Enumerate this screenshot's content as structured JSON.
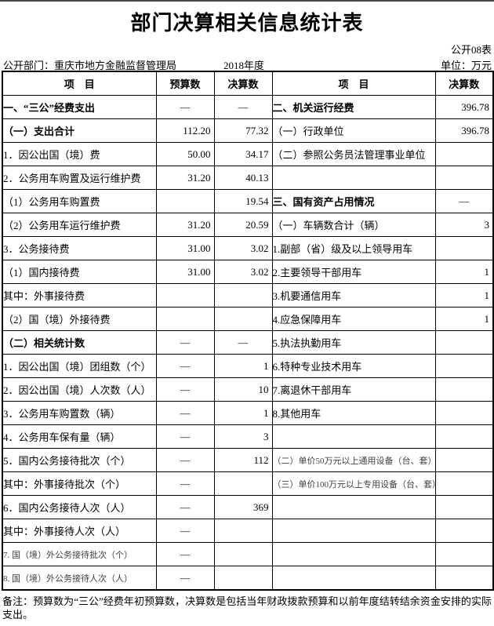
{
  "page": {
    "title": "部门决算相关信息统计表",
    "table_code": "公开08表",
    "dept": "公开部门：重庆市地方金融监督管理局",
    "year": "2018年度",
    "unit": "单位：万元",
    "note": "备注：预算数为“三公”经费年初预算数，决算数是包括当年财政拨款预算和以前年度结转结余资金安排的实际支出。"
  },
  "table": {
    "headers": {
      "item_left": "项　目",
      "budget": "预算数",
      "final_left": "决算数",
      "item_right": "项　目",
      "final_right": "决算数"
    },
    "rows": [
      {
        "left": {
          "text": "一、“三公”经费支出",
          "indent": 0,
          "bold": true,
          "small": false
        },
        "budget": "—",
        "left_final": "—",
        "right": {
          "text": "二、机关运行经费",
          "indent": 0,
          "bold": true,
          "small": false
        },
        "right_final": "396.78"
      },
      {
        "left": {
          "text": "（一）支出合计",
          "indent": 0,
          "bold": true,
          "small": false
        },
        "budget": "112.20",
        "left_final": "77.32",
        "right": {
          "text": "（一）行政单位",
          "indent": 0,
          "bold": false,
          "small": false
        },
        "right_final": "396.78"
      },
      {
        "left": {
          "text": "1．因公出国（境）费",
          "indent": 1,
          "bold": false,
          "small": false
        },
        "budget": "50.00",
        "left_final": "34.17",
        "right": {
          "text": "（二）参照公务员法管理事业单位",
          "indent": 0,
          "bold": false,
          "small": false
        },
        "right_final": ""
      },
      {
        "left": {
          "text": "2．公务用车购置及运行维护费",
          "indent": 1,
          "bold": false,
          "small": false
        },
        "budget": "31.20",
        "left_final": "40.13",
        "right": {
          "text": "",
          "indent": 0,
          "bold": false,
          "small": false
        },
        "right_final": ""
      },
      {
        "left": {
          "text": "（1）公务用车购置费",
          "indent": 2,
          "bold": false,
          "small": false
        },
        "budget": "",
        "left_final": "19.54",
        "right": {
          "text": "三、国有资产占用情况",
          "indent": 0,
          "bold": true,
          "small": false
        },
        "right_final": "—"
      },
      {
        "left": {
          "text": "（2）公务用车运行维护费",
          "indent": 2,
          "bold": false,
          "small": false
        },
        "budget": "31.20",
        "left_final": "20.59",
        "right": {
          "text": "（一）车辆数合计（辆）",
          "indent": 0,
          "bold": false,
          "small": false
        },
        "right_final": "3"
      },
      {
        "left": {
          "text": "3．公务接待费",
          "indent": 1,
          "bold": false,
          "small": false
        },
        "budget": "31.00",
        "left_final": "3.02",
        "right": {
          "text": "1.副部（省）级及以上领导用车",
          "indent": 1,
          "bold": false,
          "small": false
        },
        "right_final": ""
      },
      {
        "left": {
          "text": "（1）国内接待费",
          "indent": 2,
          "bold": false,
          "small": false
        },
        "budget": "31.00",
        "left_final": "3.02",
        "right": {
          "text": "2.主要领导干部用车",
          "indent": 1,
          "bold": false,
          "small": false
        },
        "right_final": "1"
      },
      {
        "left": {
          "text": "其中：外事接待费",
          "indent": 4,
          "bold": false,
          "small": false
        },
        "budget": "",
        "left_final": "",
        "right": {
          "text": "3.机要通信用车",
          "indent": 1,
          "bold": false,
          "small": false
        },
        "right_final": "1"
      },
      {
        "left": {
          "text": "（2）国（境）外接待费",
          "indent": 2,
          "bold": false,
          "small": false
        },
        "budget": "",
        "left_final": "",
        "right": {
          "text": "4.应急保障用车",
          "indent": 1,
          "bold": false,
          "small": false
        },
        "right_final": "1"
      },
      {
        "left": {
          "text": "（二）相关统计数",
          "indent": 0,
          "bold": true,
          "small": false
        },
        "budget": "—",
        "left_final": "—",
        "right": {
          "text": "5.执法执勤用车",
          "indent": 1,
          "bold": false,
          "small": false
        },
        "right_final": ""
      },
      {
        "left": {
          "text": "1．因公出国（境）团组数（个）",
          "indent": 1,
          "bold": false,
          "small": false
        },
        "budget": "—",
        "left_final": "1",
        "right": {
          "text": "6.特种专业技术用车",
          "indent": 1,
          "bold": false,
          "small": false
        },
        "right_final": ""
      },
      {
        "left": {
          "text": "2．因公出国（境）人次数（人）",
          "indent": 1,
          "bold": false,
          "small": false
        },
        "budget": "—",
        "left_final": "10",
        "right": {
          "text": "7.离退休干部用车",
          "indent": 1,
          "bold": false,
          "small": false
        },
        "right_final": ""
      },
      {
        "left": {
          "text": "3．公务用车购置数（辆）",
          "indent": 1,
          "bold": false,
          "small": false
        },
        "budget": "—",
        "left_final": "1",
        "right": {
          "text": "8.其他用车",
          "indent": 1,
          "bold": false,
          "small": false
        },
        "right_final": ""
      },
      {
        "left": {
          "text": "4．公务用车保有量（辆）",
          "indent": 1,
          "bold": false,
          "small": false
        },
        "budget": "—",
        "left_final": "3",
        "right": {
          "text": "",
          "indent": 0,
          "bold": false,
          "small": false
        },
        "right_final": ""
      },
      {
        "left": {
          "text": "5．国内公务接待批次（个）",
          "indent": 1,
          "bold": false,
          "small": false
        },
        "budget": "—",
        "left_final": "112",
        "right": {
          "text": "（二）单价50万元以上通用设备（台、套）",
          "indent": 0,
          "bold": false,
          "small": true
        },
        "right_final": ""
      },
      {
        "left": {
          "text": "其中：外事接待批次（个）",
          "indent": 3,
          "bold": false,
          "small": false
        },
        "budget": "—",
        "left_final": "",
        "right": {
          "text": "（三）单价100万元以上专用设备（台、套）",
          "indent": 0,
          "bold": false,
          "small": true
        },
        "right_final": ""
      },
      {
        "left": {
          "text": "6．国内公务接待人次（人）",
          "indent": 1,
          "bold": false,
          "small": false
        },
        "budget": "—",
        "left_final": "369",
        "right": {
          "text": "",
          "indent": 0,
          "bold": false,
          "small": false
        },
        "right_final": ""
      },
      {
        "left": {
          "text": "其中：外事接待人次（人）",
          "indent": 3,
          "bold": false,
          "small": false
        },
        "budget": "—",
        "left_final": "",
        "right": {
          "text": "",
          "indent": 0,
          "bold": false,
          "small": false
        },
        "right_final": ""
      },
      {
        "left": {
          "text": "7. 国（境）外公务接待批次（个）",
          "indent": 1,
          "bold": false,
          "small": true
        },
        "budget": "—",
        "left_final": "",
        "right": {
          "text": "",
          "indent": 0,
          "bold": false,
          "small": false
        },
        "right_final": ""
      },
      {
        "left": {
          "text": "8. 国（境）外公务接待人次（人）",
          "indent": 1,
          "bold": false,
          "small": true
        },
        "budget": "—",
        "left_final": "",
        "right": {
          "text": "",
          "indent": 0,
          "bold": false,
          "small": false
        },
        "right_final": ""
      }
    ]
  }
}
